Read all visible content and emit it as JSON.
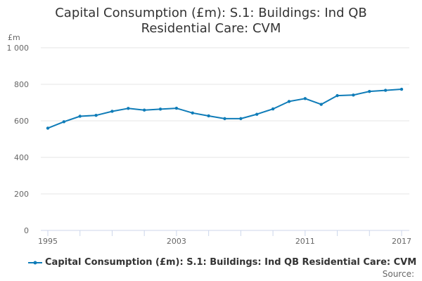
{
  "colors": {
    "series": "#0f7cb8",
    "grid": "#e6e6e6",
    "axis": "#ccd6eb",
    "text": "#333333",
    "tick_text": "#666666"
  },
  "chart_data": {
    "type": "line",
    "title_lines": [
      "Capital Consumption (£m): S.1: Buildings: Ind QB",
      "Residential Care: CVM"
    ],
    "ylabel": "£m",
    "xlabel": "",
    "ylim": [
      0,
      1000
    ],
    "xlim": [
      1995,
      2017
    ],
    "y_ticks": [
      {
        "value": 0,
        "label": "0"
      },
      {
        "value": 200,
        "label": "200"
      },
      {
        "value": 400,
        "label": "400"
      },
      {
        "value": 600,
        "label": "600"
      },
      {
        "value": 800,
        "label": "800"
      },
      {
        "value": 1000,
        "label": "1 000"
      }
    ],
    "x_ticks": [
      {
        "value": 1995,
        "label": "1995"
      },
      {
        "value": 2003,
        "label": "2003"
      },
      {
        "value": 2011,
        "label": "2011"
      },
      {
        "value": 2017,
        "label": "2017"
      }
    ],
    "x_minor_ticks": [
      1995,
      1997,
      1999,
      2001,
      2003,
      2005,
      2007,
      2009,
      2011,
      2013,
      2015,
      2017
    ],
    "grid": true,
    "legend_position": "bottom-left",
    "series": [
      {
        "name": "Capital Consumption (£m): S.1: Buildings: Ind QB Residential Care: CVM",
        "x": [
          1995,
          1996,
          1997,
          1998,
          1999,
          2000,
          2001,
          2002,
          2003,
          2004,
          2005,
          2006,
          2007,
          2008,
          2009,
          2010,
          2011,
          2012,
          2013,
          2014,
          2015,
          2016,
          2017
        ],
        "values": [
          560,
          595,
          625,
          630,
          652,
          668,
          659,
          664,
          669,
          643,
          627,
          612,
          612,
          636,
          665,
          706,
          722,
          690,
          738,
          741,
          761,
          767,
          773
        ]
      }
    ],
    "source_label": "Source:"
  }
}
